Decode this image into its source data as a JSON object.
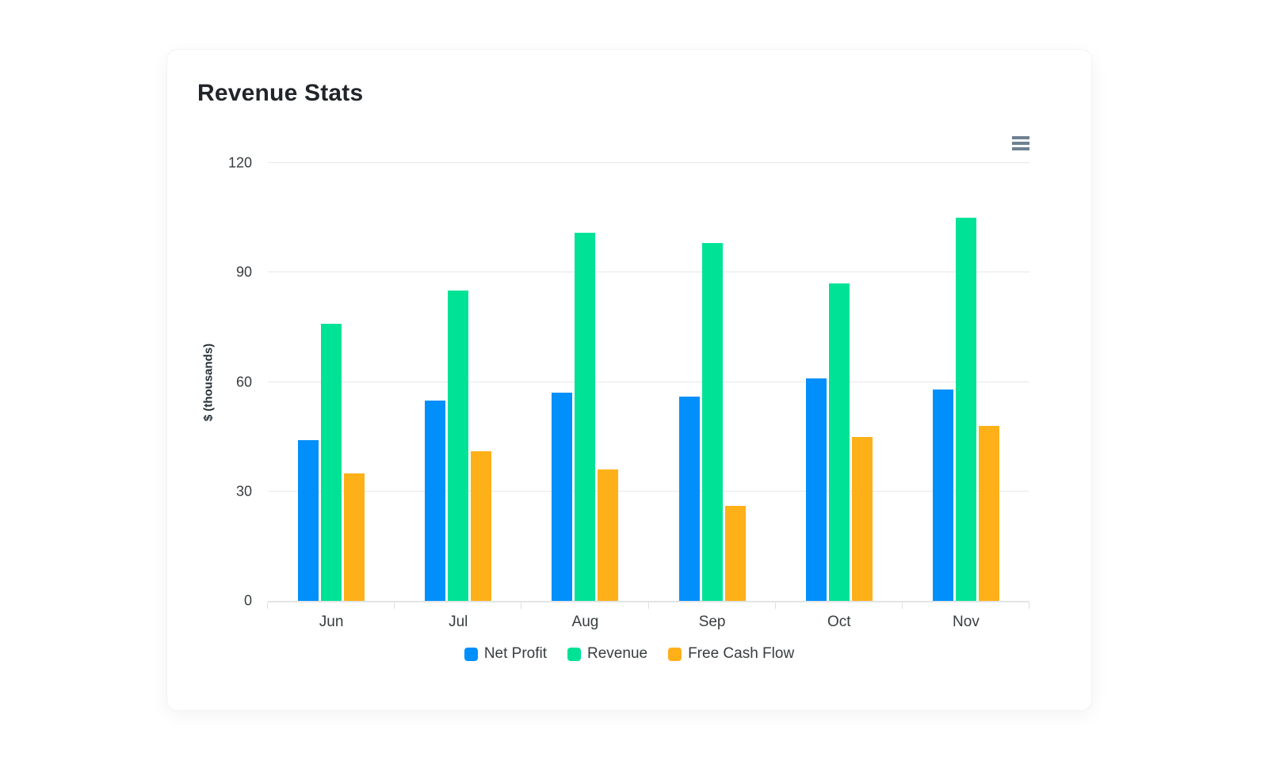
{
  "chart": {
    "title": "Revenue Stats",
    "menu_icon": "hamburger-menu"
  },
  "chart_data": {
    "type": "bar",
    "title": "Revenue Stats",
    "categories": [
      "Jun",
      "Jul",
      "Aug",
      "Sep",
      "Oct",
      "Nov"
    ],
    "series": [
      {
        "name": "Net Profit",
        "color": "#008FFB",
        "values": [
          44,
          55,
          57,
          56,
          61,
          58
        ]
      },
      {
        "name": "Revenue",
        "color": "#00E396",
        "values": [
          76,
          85,
          101,
          98,
          87,
          105
        ]
      },
      {
        "name": "Free Cash Flow",
        "color": "#FEB019",
        "values": [
          35,
          41,
          36,
          26,
          45,
          48
        ]
      }
    ],
    "xlabel": "",
    "ylabel": "$ (thousands)",
    "ylim": [
      0,
      120
    ],
    "yticks": [
      0,
      30,
      60,
      90,
      120
    ],
    "grid": true,
    "legend_position": "bottom",
    "colors": {
      "tick_label": "#373d3f",
      "grid": "#e8e8e8",
      "toolbar_icon": "#6E8192"
    }
  }
}
